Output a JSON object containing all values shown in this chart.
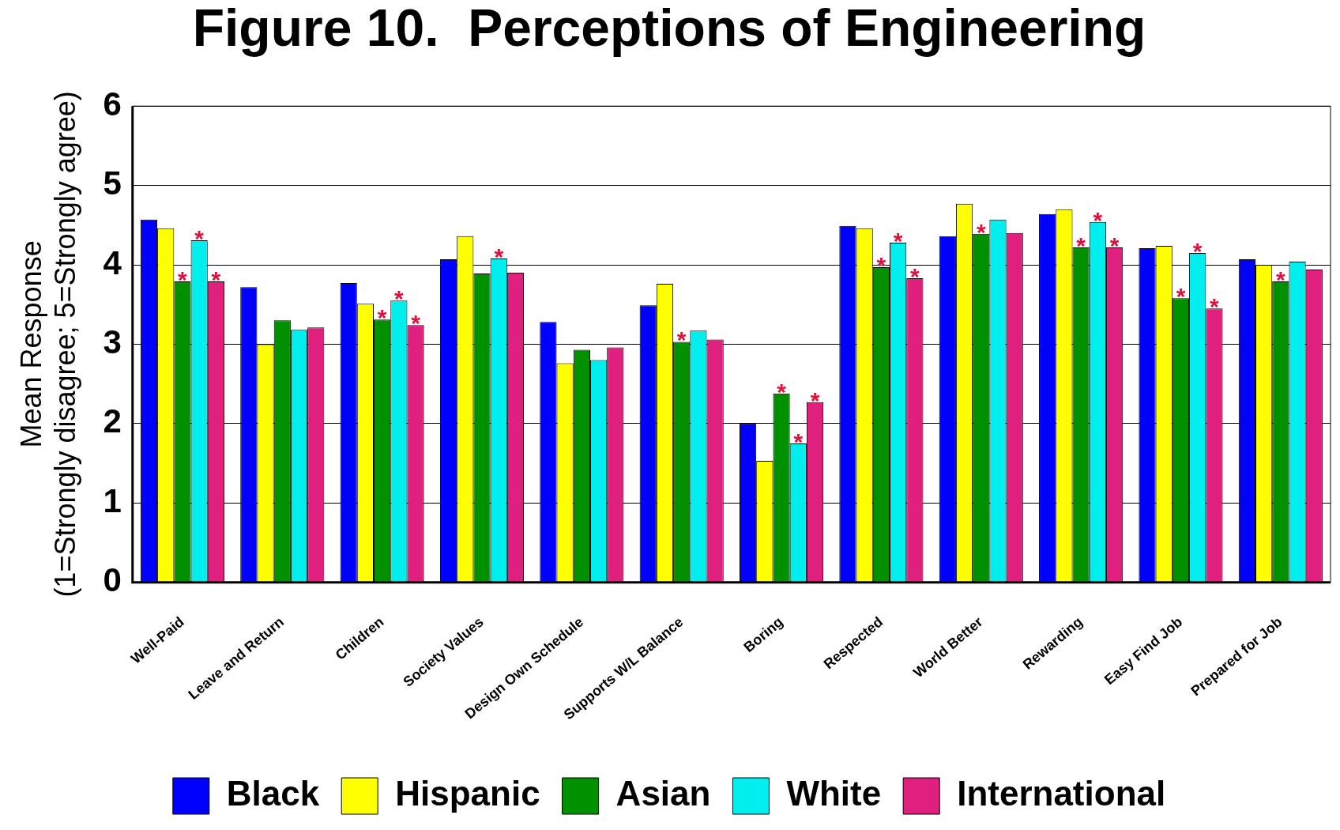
{
  "chart_data": {
    "type": "bar",
    "title": "Figure 10.  Perceptions of Engineering",
    "ylabel": "Mean Response\n(1=Strongly disagree; 5=Strongly agree)",
    "categories": [
      "Well-Paid",
      "Leave and Return",
      "Children",
      "Society Values",
      "Design Own Schedule",
      "Supports W/L Balance",
      "Boring",
      "Respected",
      "World Better",
      "Rewarding",
      "Easy Find Job",
      "Prepared for Job"
    ],
    "series": [
      {
        "name": "Black",
        "color": "#0000ff",
        "values": [
          4.57,
          3.72,
          3.77,
          4.07,
          3.28,
          3.49,
          2.0,
          4.49,
          4.36,
          4.64,
          4.21,
          4.07
        ],
        "value_labels": [
          null,
          null,
          null,
          null,
          null,
          null,
          null,
          null,
          null,
          null,
          null,
          null
        ]
      },
      {
        "name": "Hispanic",
        "color": "#ffff00",
        "values": [
          4.46,
          3.0,
          3.51,
          4.36,
          2.76,
          3.76,
          1.53,
          4.46,
          4.77,
          4.7,
          4.24,
          4.0
        ],
        "value_labels": [
          null,
          null,
          null,
          null,
          null,
          null,
          null,
          null,
          null,
          null,
          null,
          null
        ]
      },
      {
        "name": "Asian",
        "color": "#009000",
        "values": [
          3.79,
          3.3,
          3.31,
          3.89,
          2.93,
          3.03,
          2.38,
          3.97,
          4.39,
          4.22,
          3.58,
          3.79
        ],
        "value_labels": [
          "*",
          null,
          "*",
          null,
          null,
          "*",
          "*",
          "*",
          "*",
          "*",
          "*",
          "*"
        ]
      },
      {
        "name": "White",
        "color": "#00eeee",
        "values": [
          4.31,
          3.18,
          3.55,
          4.08,
          2.8,
          3.17,
          1.75,
          4.28,
          4.57,
          4.54,
          4.15,
          4.04
        ],
        "value_labels": [
          "*",
          null,
          "*",
          "*",
          null,
          null,
          "*",
          "*",
          null,
          "*",
          "*",
          null
        ]
      },
      {
        "name": "International",
        "color": "#e0207f",
        "values": [
          3.79,
          3.21,
          3.24,
          3.9,
          2.96,
          3.06,
          2.27,
          3.83,
          4.4,
          4.22,
          3.45,
          3.94
        ],
        "value_labels": [
          "*",
          null,
          "*",
          null,
          null,
          null,
          "*",
          "*",
          null,
          "*",
          "*",
          null
        ]
      }
    ],
    "ylim": [
      0,
      6
    ],
    "yticks": [
      0,
      1,
      2,
      3,
      4,
      5,
      6
    ],
    "grid": "y",
    "legend": "bottom"
  }
}
